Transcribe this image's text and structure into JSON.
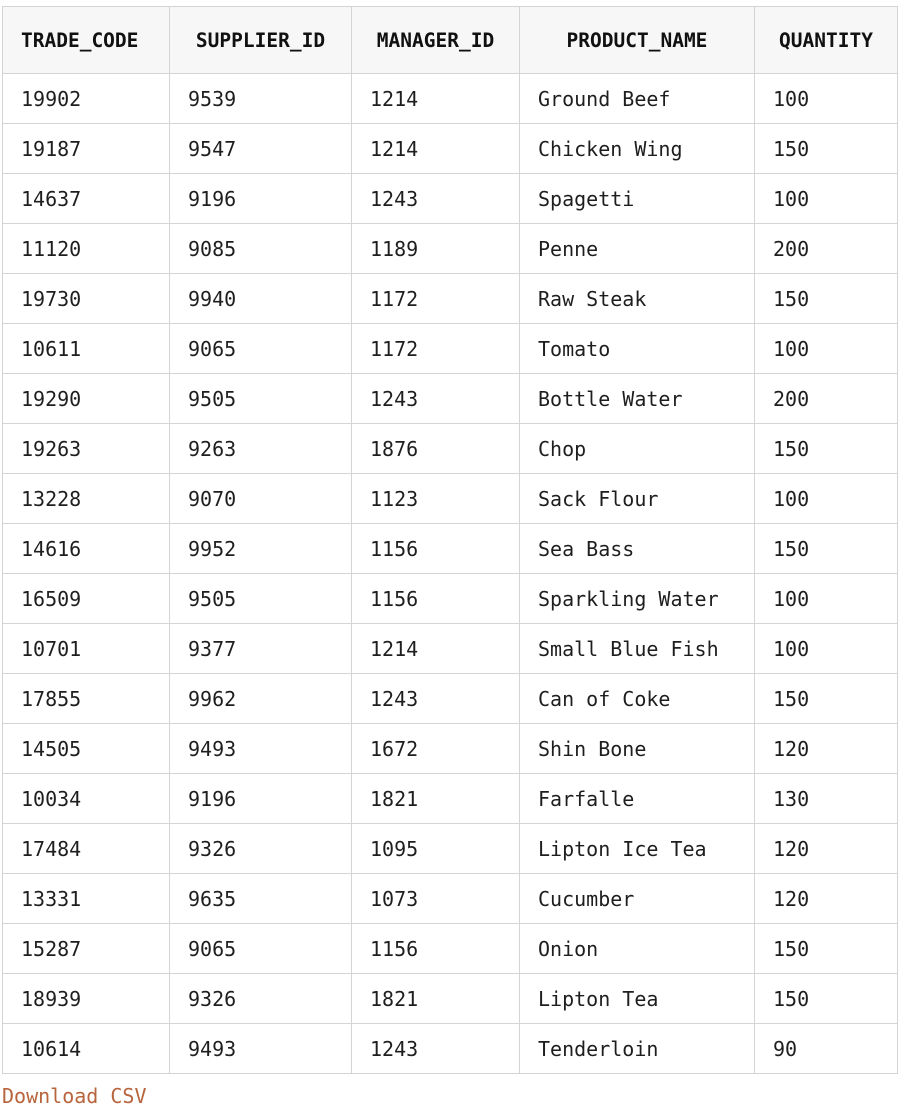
{
  "table": {
    "columns": [
      "TRADE_CODE",
      "SUPPLIER_ID",
      "MANAGER_ID",
      "PRODUCT_NAME",
      "QUANTITY"
    ],
    "rows": [
      [
        "19902",
        "9539",
        "1214",
        "Ground Beef",
        "100"
      ],
      [
        "19187",
        "9547",
        "1214",
        "Chicken Wing",
        "150"
      ],
      [
        "14637",
        "9196",
        "1243",
        "Spagetti",
        "100"
      ],
      [
        "11120",
        "9085",
        "1189",
        "Penne",
        "200"
      ],
      [
        "19730",
        "9940",
        "1172",
        "Raw Steak",
        "150"
      ],
      [
        "10611",
        "9065",
        "1172",
        "Tomato",
        "100"
      ],
      [
        "19290",
        "9505",
        "1243",
        "Bottle Water",
        "200"
      ],
      [
        "19263",
        "9263",
        "1876",
        "Chop",
        "150"
      ],
      [
        "13228",
        "9070",
        "1123",
        "Sack Flour",
        "100"
      ],
      [
        "14616",
        "9952",
        "1156",
        "Sea Bass",
        "150"
      ],
      [
        "16509",
        "9505",
        "1156",
        "Sparkling Water",
        "100"
      ],
      [
        "10701",
        "9377",
        "1214",
        "Small Blue Fish",
        "100"
      ],
      [
        "17855",
        "9962",
        "1243",
        "Can of Coke",
        "150"
      ],
      [
        "14505",
        "9493",
        "1672",
        "Shin Bone",
        "120"
      ],
      [
        "10034",
        "9196",
        "1821",
        "Farfalle",
        "130"
      ],
      [
        "17484",
        "9326",
        "1095",
        "Lipton Ice Tea",
        "120"
      ],
      [
        "13331",
        "9635",
        "1073",
        "Cucumber",
        "120"
      ],
      [
        "15287",
        "9065",
        "1156",
        "Onion",
        "150"
      ],
      [
        "18939",
        "9326",
        "1821",
        "Lipton Tea",
        "150"
      ],
      [
        "10614",
        "9493",
        "1243",
        "Tenderloin",
        "90"
      ]
    ]
  },
  "download_label": "Download CSV",
  "colors": {
    "link": "#b8643c",
    "border": "#d4d4d4",
    "header_bg": "#f7f7f7"
  }
}
